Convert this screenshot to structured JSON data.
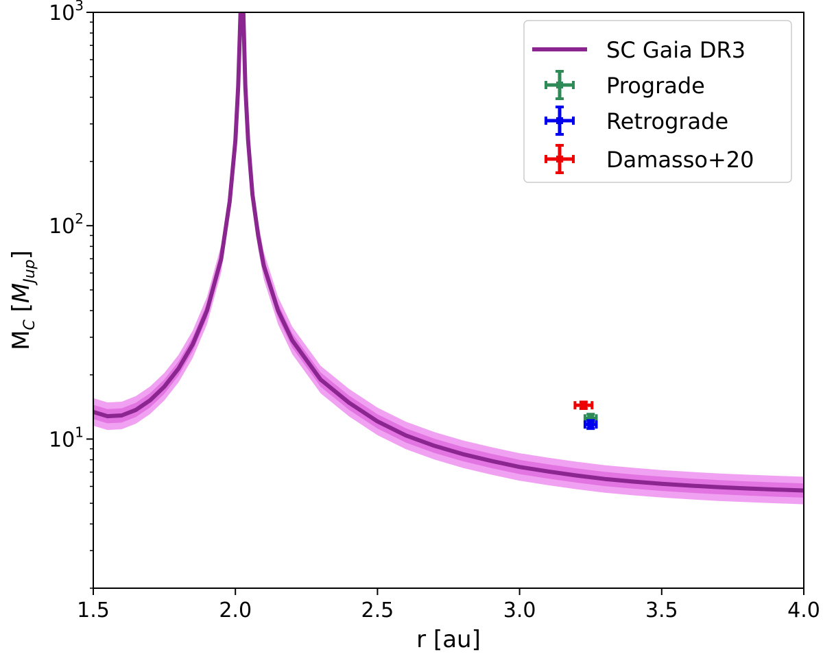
{
  "chart_data": {
    "type": "line",
    "title": "",
    "xlabel": "r [au]",
    "ylabel_main": "M",
    "ylabel_sub": "C",
    "ylabel_unit_main": "M",
    "ylabel_unit_sub": "Jup",
    "xlim": [
      1.5,
      4.0
    ],
    "ylim": [
      2.0,
      1000
    ],
    "yscale": "log",
    "x_ticks": [
      {
        "value": 1.5,
        "label": "1.5"
      },
      {
        "value": 2.0,
        "label": "2.0"
      },
      {
        "value": 2.5,
        "label": "2.5"
      },
      {
        "value": 3.0,
        "label": "3.0"
      },
      {
        "value": 3.5,
        "label": "3.5"
      },
      {
        "value": 4.0,
        "label": "4.0"
      }
    ],
    "y_ticks": [
      {
        "value": 10,
        "base": "10",
        "exp": "1"
      },
      {
        "value": 100,
        "base": "10",
        "exp": "2"
      },
      {
        "value": 1000,
        "base": "10",
        "exp": "3"
      }
    ],
    "grid": false,
    "legend_position": "top-right",
    "curve": {
      "name": "SC Gaia DR3",
      "color": "#8b2590",
      "band_outer_color": "#ee90ee",
      "band_inner_color": "#e070e0",
      "points": [
        [
          1.5,
          13.4
        ],
        [
          1.55,
          12.8
        ],
        [
          1.6,
          12.9
        ],
        [
          1.65,
          13.7
        ],
        [
          1.7,
          15.2
        ],
        [
          1.75,
          17.6
        ],
        [
          1.8,
          21.4
        ],
        [
          1.85,
          27.8
        ],
        [
          1.9,
          40.0
        ],
        [
          1.95,
          70.0
        ],
        [
          1.98,
          130.0
        ],
        [
          2.0,
          250.0
        ],
        [
          2.01,
          450.0
        ],
        [
          2.018,
          1000.0
        ],
        [
          2.028,
          1000.0
        ],
        [
          2.035,
          450.0
        ],
        [
          2.045,
          250.0
        ],
        [
          2.06,
          140.0
        ],
        [
          2.08,
          90.0
        ],
        [
          2.1,
          65.0
        ],
        [
          2.15,
          40.0
        ],
        [
          2.2,
          29.0
        ],
        [
          2.3,
          19.0
        ],
        [
          2.4,
          14.8
        ],
        [
          2.5,
          12.1
        ],
        [
          2.6,
          10.4
        ],
        [
          2.7,
          9.3
        ],
        [
          2.8,
          8.5
        ],
        [
          2.9,
          7.9
        ],
        [
          3.0,
          7.4
        ],
        [
          3.1,
          7.05
        ],
        [
          3.2,
          6.75
        ],
        [
          3.3,
          6.5
        ],
        [
          3.4,
          6.32
        ],
        [
          3.5,
          6.17
        ],
        [
          3.6,
          6.05
        ],
        [
          3.7,
          5.95
        ],
        [
          3.8,
          5.87
        ],
        [
          3.9,
          5.8
        ],
        [
          4.0,
          5.74
        ]
      ],
      "band_outer_factor": 1.16,
      "band_inner_factor": 1.08
    },
    "series": [
      {
        "name": "Prograde",
        "color": "#2e8b57",
        "x": 3.25,
        "y": 12.5,
        "xerr": 0.02,
        "yerr": 0.55
      },
      {
        "name": "Retrograde",
        "color": "#0000ee",
        "x": 3.25,
        "y": 11.7,
        "xerr": 0.02,
        "yerr": 0.5
      },
      {
        "name": "Damasso+20",
        "color": "#ee0000",
        "x": 3.225,
        "y": 14.4,
        "xerr": 0.03,
        "yerr": 0.5
      }
    ]
  }
}
